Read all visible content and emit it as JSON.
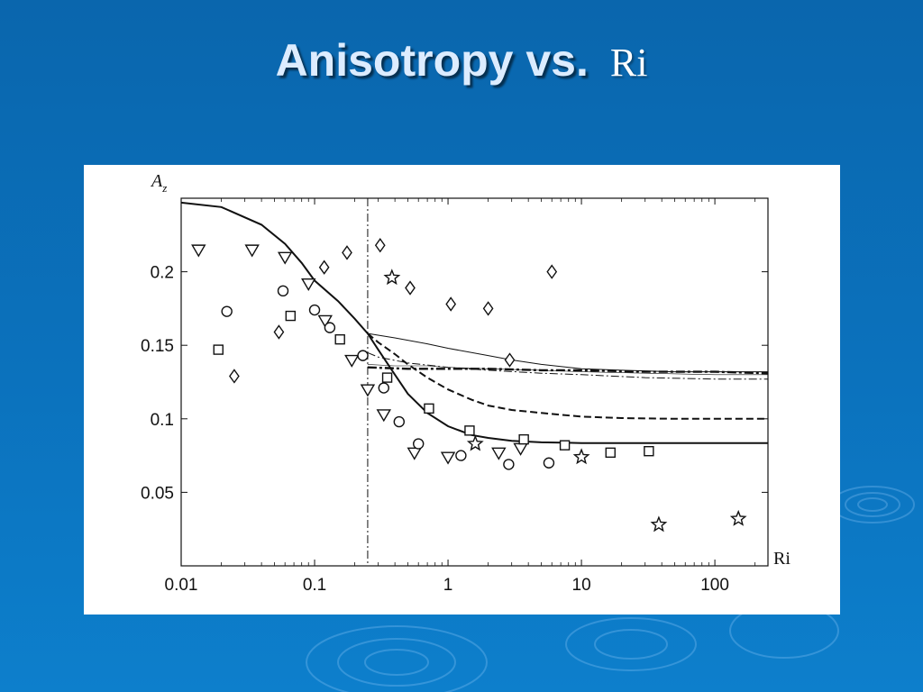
{
  "slide": {
    "title_main": "Anisotropy vs.",
    "title_var": "Ri"
  },
  "chart_data": {
    "type": "scatter",
    "ylabel": "A",
    "ylabel_sub": "z",
    "xlabel": "Ri",
    "x_scale": "log",
    "xlim": [
      0.01,
      250
    ],
    "ylim": [
      0,
      0.25
    ],
    "x_ticks": [
      {
        "value": 0.01,
        "label": "0.01"
      },
      {
        "value": 0.1,
        "label": "0.1"
      },
      {
        "value": 1,
        "label": "1"
      },
      {
        "value": 10,
        "label": "10"
      },
      {
        "value": 100,
        "label": "100"
      }
    ],
    "y_ticks": [
      {
        "value": 0.05,
        "label": "0.05"
      },
      {
        "value": 0.1,
        "label": "0.1"
      },
      {
        "value": 0.15,
        "label": "0.15"
      },
      {
        "value": 0.2,
        "label": "0.2"
      }
    ],
    "grid": false,
    "critical_line": 0.25,
    "curves": [
      {
        "style": "solid-thick",
        "x": [
          0.01,
          0.02,
          0.04,
          0.06,
          0.08,
          0.1,
          0.15,
          0.2,
          0.25,
          0.3,
          0.4,
          0.5,
          0.7,
          1,
          1.5,
          2,
          3,
          5,
          10,
          20,
          50,
          100,
          250
        ],
        "y": [
          0.247,
          0.244,
          0.232,
          0.219,
          0.206,
          0.194,
          0.18,
          0.168,
          0.158,
          0.147,
          0.13,
          0.117,
          0.104,
          0.095,
          0.089,
          0.087,
          0.085,
          0.084,
          0.0835,
          0.0835,
          0.0835,
          0.0835,
          0.0835
        ]
      },
      {
        "style": "dashed-thick",
        "x": [
          0.25,
          0.3,
          0.4,
          0.5,
          0.7,
          1,
          1.5,
          2,
          3,
          5,
          10,
          20,
          50,
          100,
          250
        ],
        "y": [
          0.158,
          0.152,
          0.144,
          0.137,
          0.128,
          0.12,
          0.113,
          0.109,
          0.106,
          0.104,
          0.1015,
          0.1005,
          0.1,
          0.1,
          0.1
        ]
      },
      {
        "style": "solid-thin",
        "x": [
          0.25,
          0.4,
          0.7,
          1,
          2,
          3,
          5,
          10,
          20,
          50,
          100,
          250
        ],
        "y": [
          0.158,
          0.155,
          0.151,
          0.148,
          0.143,
          0.14,
          0.137,
          0.134,
          0.133,
          0.132,
          0.132,
          0.132
        ]
      },
      {
        "style": "dashdot-thin",
        "x": [
          0.25,
          0.3,
          0.5,
          1,
          2,
          5,
          10,
          30,
          100,
          250
        ],
        "y": [
          0.145,
          0.142,
          0.138,
          0.135,
          0.133,
          0.131,
          0.13,
          0.128,
          0.127,
          0.127
        ]
      },
      {
        "style": "dashdot-thick",
        "x": [
          0.25,
          0.5,
          1,
          2,
          5,
          10,
          30,
          100,
          250
        ],
        "y": [
          0.135,
          0.134,
          0.134,
          0.134,
          0.133,
          0.133,
          0.132,
          0.132,
          0.131
        ]
      },
      {
        "style": "solid-hair",
        "x": [
          0.25,
          0.4,
          0.7,
          1,
          2,
          5,
          10,
          30,
          100,
          250
        ],
        "y": [
          0.137,
          0.136,
          0.136,
          0.135,
          0.134,
          0.133,
          0.132,
          0.131,
          0.13,
          0.13
        ]
      }
    ],
    "series": [
      {
        "marker": "triangle-down",
        "x": [
          0.0135,
          0.034,
          0.06,
          0.09,
          0.12,
          0.19,
          0.25,
          0.33,
          0.56,
          1.0,
          2.4,
          3.5
        ],
        "y": [
          0.215,
          0.215,
          0.21,
          0.192,
          0.167,
          0.14,
          0.12,
          0.103,
          0.077,
          0.074,
          0.077,
          0.08
        ]
      },
      {
        "marker": "circle",
        "x": [
          0.022,
          0.058,
          0.1,
          0.13,
          0.23,
          0.33,
          0.43,
          0.6,
          1.25,
          2.85,
          5.7
        ],
        "y": [
          0.173,
          0.187,
          0.174,
          0.162,
          0.143,
          0.121,
          0.098,
          0.083,
          0.075,
          0.069,
          0.07
        ]
      },
      {
        "marker": "square",
        "x": [
          0.019,
          0.066,
          0.155,
          0.35,
          0.72,
          1.45,
          3.7,
          7.5,
          16.5,
          32
        ],
        "y": [
          0.147,
          0.17,
          0.154,
          0.128,
          0.107,
          0.092,
          0.086,
          0.082,
          0.077,
          0.078
        ]
      },
      {
        "marker": "diamond",
        "x": [
          0.025,
          0.054,
          0.118,
          0.175,
          0.31,
          0.52,
          1.05,
          2.0,
          2.9,
          6.0
        ],
        "y": [
          0.129,
          0.159,
          0.203,
          0.213,
          0.218,
          0.189,
          0.178,
          0.175,
          0.14,
          0.2
        ]
      },
      {
        "marker": "star",
        "x": [
          0.38,
          1.6,
          10,
          38,
          150
        ],
        "y": [
          0.196,
          0.083,
          0.074,
          0.028,
          0.032
        ]
      }
    ]
  }
}
